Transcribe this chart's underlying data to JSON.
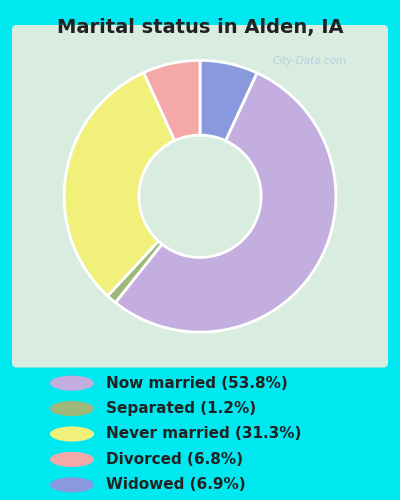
{
  "title": "Marital status in Alden, IA",
  "slices": [
    53.8,
    1.2,
    31.3,
    6.8,
    6.9
  ],
  "labels": [
    "Now married (53.8%)",
    "Separated (1.2%)",
    "Never married (31.3%)",
    "Divorced (6.8%)",
    "Widowed (6.9%)"
  ],
  "colors": [
    "#c4aee0",
    "#9eb87a",
    "#f0f07a",
    "#f4a8a8",
    "#8899dd"
  ],
  "bg_color": "#00e8f0",
  "chart_bg_color": "#d8ede0",
  "title_color": "#222222",
  "title_fontsize": 14,
  "legend_fontsize": 11,
  "watermark": "City-Data.com",
  "donut_width": 0.55,
  "plot_order": [
    4,
    0,
    1,
    2,
    3
  ],
  "startangle": 90
}
